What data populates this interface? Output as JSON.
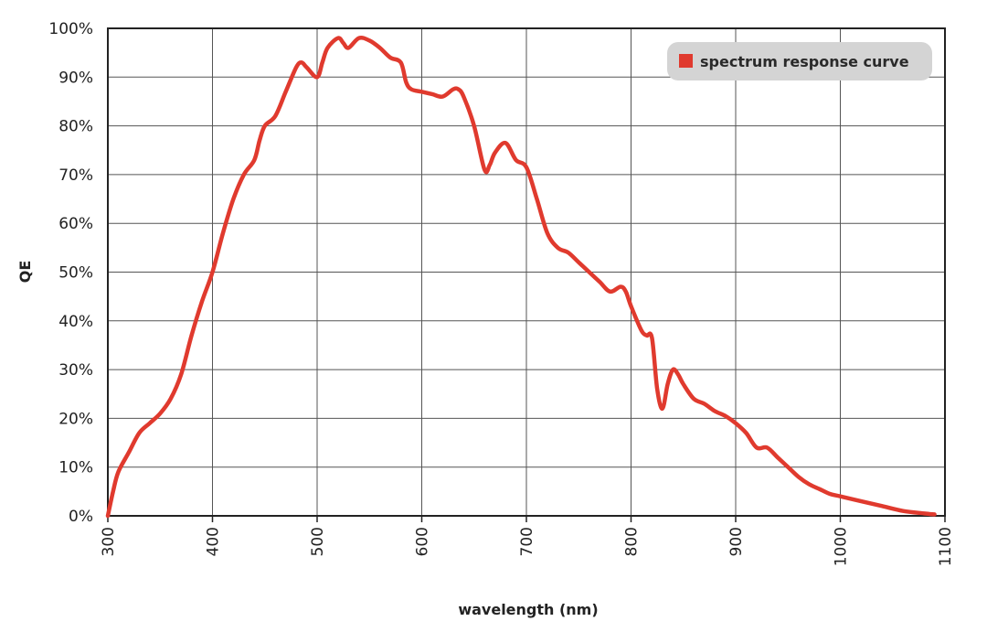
{
  "chart_data": {
    "type": "line",
    "title": "",
    "xlabel": "wavelength (nm)",
    "ylabel": "QE",
    "xlim": [
      300,
      1100
    ],
    "ylim": [
      0,
      100
    ],
    "grid": true,
    "legend_position": "top-right",
    "x_ticks": [
      300,
      400,
      500,
      600,
      700,
      800,
      900,
      1000,
      1100
    ],
    "x_tick_labels": [
      "300",
      "400",
      "500",
      "600",
      "700",
      "800",
      "900",
      "1000",
      "1100"
    ],
    "y_ticks": [
      0,
      10,
      20,
      30,
      40,
      50,
      60,
      70,
      80,
      90,
      100
    ],
    "y_tick_labels": [
      "0%",
      "10%",
      "20%",
      "30%",
      "40%",
      "50%",
      "60%",
      "70%",
      "80%",
      "90%",
      "100%"
    ],
    "series": [
      {
        "name": "spectrum response curve",
        "color": "#e03a2e",
        "x": [
          300,
          305,
          310,
          320,
          330,
          340,
          350,
          360,
          370,
          380,
          390,
          400,
          410,
          420,
          430,
          440,
          445,
          450,
          460,
          470,
          480,
          485,
          490,
          500,
          505,
          510,
          520,
          525,
          530,
          540,
          550,
          560,
          570,
          580,
          585,
          590,
          600,
          610,
          620,
          630,
          635,
          640,
          650,
          660,
          665,
          670,
          680,
          690,
          700,
          710,
          720,
          730,
          740,
          750,
          760,
          770,
          780,
          790,
          795,
          800,
          810,
          815,
          820,
          825,
          830,
          835,
          840,
          845,
          850,
          860,
          870,
          880,
          890,
          900,
          910,
          920,
          930,
          940,
          950,
          960,
          970,
          980,
          990,
          1000,
          1020,
          1040,
          1060,
          1080,
          1090
        ],
        "values": [
          0,
          5,
          9,
          13,
          17,
          19,
          21,
          24,
          29,
          37,
          44,
          50,
          58,
          65,
          70,
          73,
          77,
          80,
          82,
          87,
          92,
          93,
          92,
          90,
          93,
          96,
          98,
          97,
          96,
          98,
          97.5,
          96,
          94,
          93,
          89,
          87.5,
          87,
          86.5,
          86,
          87.5,
          87.5,
          86,
          80,
          71,
          72,
          74.5,
          76.5,
          73,
          71.5,
          65,
          58,
          55,
          54,
          52,
          50,
          48,
          46,
          47,
          46,
          43,
          38,
          37,
          36.5,
          26,
          22,
          27,
          30,
          29,
          27,
          24,
          23,
          21.5,
          20.5,
          19,
          17,
          14,
          14,
          12,
          10,
          8,
          6.5,
          5.5,
          4.5,
          4,
          3,
          2,
          1,
          0.5,
          0.3
        ]
      }
    ]
  }
}
